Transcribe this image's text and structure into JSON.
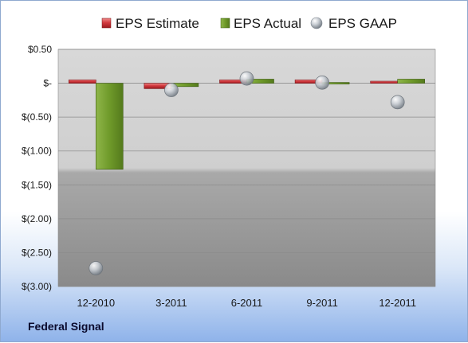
{
  "company_name": "Federal Signal",
  "colors": {
    "estimate": "#c0282d",
    "actual": "#6f9a2a",
    "gaap": "#9aa3ad"
  },
  "chart_data": {
    "type": "bar",
    "categories": [
      "12-2010",
      "3-2011",
      "6-2011",
      "9-2011",
      "12-2011"
    ],
    "series": [
      {
        "name": "EPS Estimate",
        "kind": "bar",
        "values": [
          0.05,
          -0.08,
          0.05,
          0.05,
          0.03
        ]
      },
      {
        "name": "EPS Actual",
        "kind": "bar",
        "values": [
          -1.27,
          -0.05,
          0.06,
          0.0,
          0.06
        ]
      },
      {
        "name": "EPS GAAP",
        "kind": "marker",
        "values": [
          -2.73,
          -0.1,
          0.07,
          0.01,
          -0.28
        ]
      }
    ],
    "ylim": [
      -3.0,
      0.5
    ],
    "y_ticks": [
      0.5,
      0.0,
      -0.5,
      -1.0,
      -1.5,
      -2.0,
      -2.5,
      -3.0
    ],
    "y_tick_labels": [
      "$0.50",
      "$-",
      "$(0.50)",
      "$(1.00)",
      "$(1.50)",
      "$(2.00)",
      "$(2.50)",
      "$(3.00)"
    ],
    "legend_position": "top",
    "grid": true
  }
}
